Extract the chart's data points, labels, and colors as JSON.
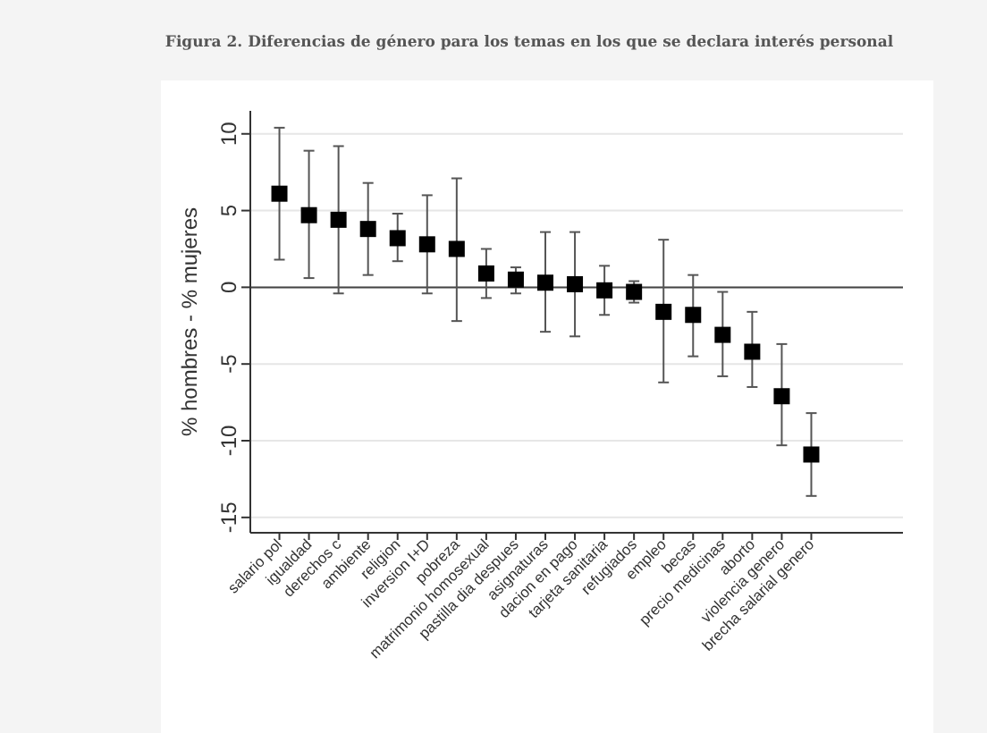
{
  "chart_data": {
    "type": "scatter",
    "title": "Figura 2. Diferencias de género para los temas en los que se declara interés personal",
    "ylabel": "% hombres - % mujeres",
    "categories": [
      "salario pol",
      "igualdad",
      "derechos c",
      "ambiente",
      "religion",
      "inversion I+D",
      "pobreza",
      "matrimonio homosexual",
      "pastilla dia despues",
      "asignaturas",
      "dacion en pago",
      "tarjeta sanitaria",
      "refugiados",
      "empleo",
      "becas",
      "precio medicinas",
      "aborto",
      "violencia genero",
      "brecha salarial genero"
    ],
    "values": [
      6.1,
      4.7,
      4.4,
      3.8,
      3.2,
      2.8,
      2.5,
      0.9,
      0.5,
      0.3,
      0.2,
      -0.2,
      -0.3,
      -1.6,
      -1.8,
      -3.1,
      -4.2,
      -7.1,
      -10.9
    ],
    "errors": [
      [
        1.8,
        10.4
      ],
      [
        0.6,
        8.9
      ],
      [
        -0.4,
        9.2
      ],
      [
        0.8,
        6.8
      ],
      [
        1.7,
        4.8
      ],
      [
        -0.4,
        6.0
      ],
      [
        -2.2,
        7.1
      ],
      [
        -0.7,
        2.5
      ],
      [
        -0.4,
        1.3
      ],
      [
        -2.9,
        3.6
      ],
      [
        -3.2,
        3.6
      ],
      [
        -1.8,
        1.4
      ],
      [
        -1.0,
        0.4
      ],
      [
        -6.2,
        3.1
      ],
      [
        -4.5,
        0.8
      ],
      [
        -5.8,
        -0.3
      ],
      [
        -6.5,
        -1.6
      ],
      [
        -10.3,
        -3.7
      ],
      [
        -13.6,
        -8.2
      ]
    ],
    "color": "#000000",
    "marker": "square",
    "ylim": [
      -16,
      11.5
    ],
    "yticks": [
      -15,
      -10,
      -5,
      0,
      5,
      10
    ],
    "grid": "y",
    "ref_lines": [
      {
        "axis": "y",
        "value": 0,
        "color": "#444444"
      }
    ]
  }
}
